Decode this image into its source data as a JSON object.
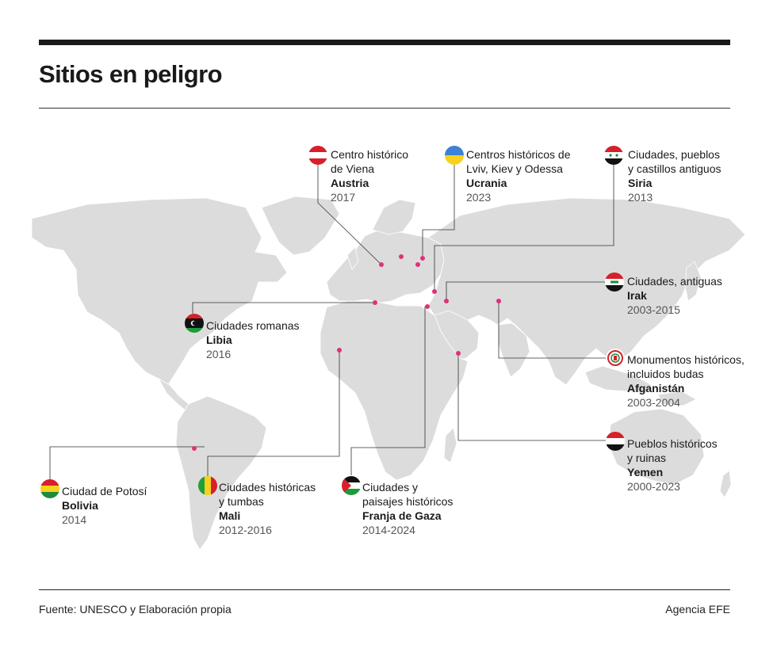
{
  "title": "Sitios en peligro",
  "footer": {
    "source": "Fuente: UNESCO y Elaboración propia",
    "credit": "Agencia EFE"
  },
  "sites": [
    {
      "id": "austria",
      "desc1": "Centro histórico",
      "desc2": "de Viena",
      "country": "Austria",
      "years": "2017",
      "flag": "austria-flag-icon"
    },
    {
      "id": "ucrania",
      "desc1": "Centros históricos de",
      "desc2": "Lviv, Kiev y Odessa",
      "country": "Ucrania",
      "years": "2023",
      "flag": "ukraine-flag-icon"
    },
    {
      "id": "siria",
      "desc1": "Ciudades, pueblos",
      "desc2": "y castillos antiguos",
      "country": "Siria",
      "years": "2013",
      "flag": "syria-flag-icon"
    },
    {
      "id": "irak",
      "desc1": "Ciudades, antiguas",
      "desc2": "",
      "country": "Irak",
      "years": "2003-2015",
      "flag": "iraq-flag-icon"
    },
    {
      "id": "libia",
      "desc1": "Ciudades romanas",
      "desc2": "",
      "country": "Libia",
      "years": "2016",
      "flag": "libya-flag-icon"
    },
    {
      "id": "afganistan",
      "desc1": "Monumentos históricos,",
      "desc2": "incluidos budas",
      "country": "Afganistán",
      "years": "2003-2004",
      "flag": "afghanistan-flag-icon"
    },
    {
      "id": "yemen",
      "desc1": "Pueblos históricos",
      "desc2": "y ruinas",
      "country": "Yemen",
      "years": "2000-2023",
      "flag": "yemen-flag-icon"
    },
    {
      "id": "bolivia",
      "desc1": "Ciudad de Potosí",
      "desc2": "",
      "country": "Bolivia",
      "years": "2014",
      "flag": "bolivia-flag-icon"
    },
    {
      "id": "mali",
      "desc1": "Ciudades históricas",
      "desc2": "y tumbas",
      "country": "Mali",
      "years": "2012-2016",
      "flag": "mali-flag-icon"
    },
    {
      "id": "gaza",
      "desc1": "Ciudades y",
      "desc2": "paisajes históricos",
      "country": "Franja de Gaza",
      "years": "2014-2024",
      "flag": "palestine-flag-icon"
    }
  ],
  "colors": {
    "land": "#dcdcdc",
    "marker": "#e0307a",
    "leader": "#333333"
  }
}
